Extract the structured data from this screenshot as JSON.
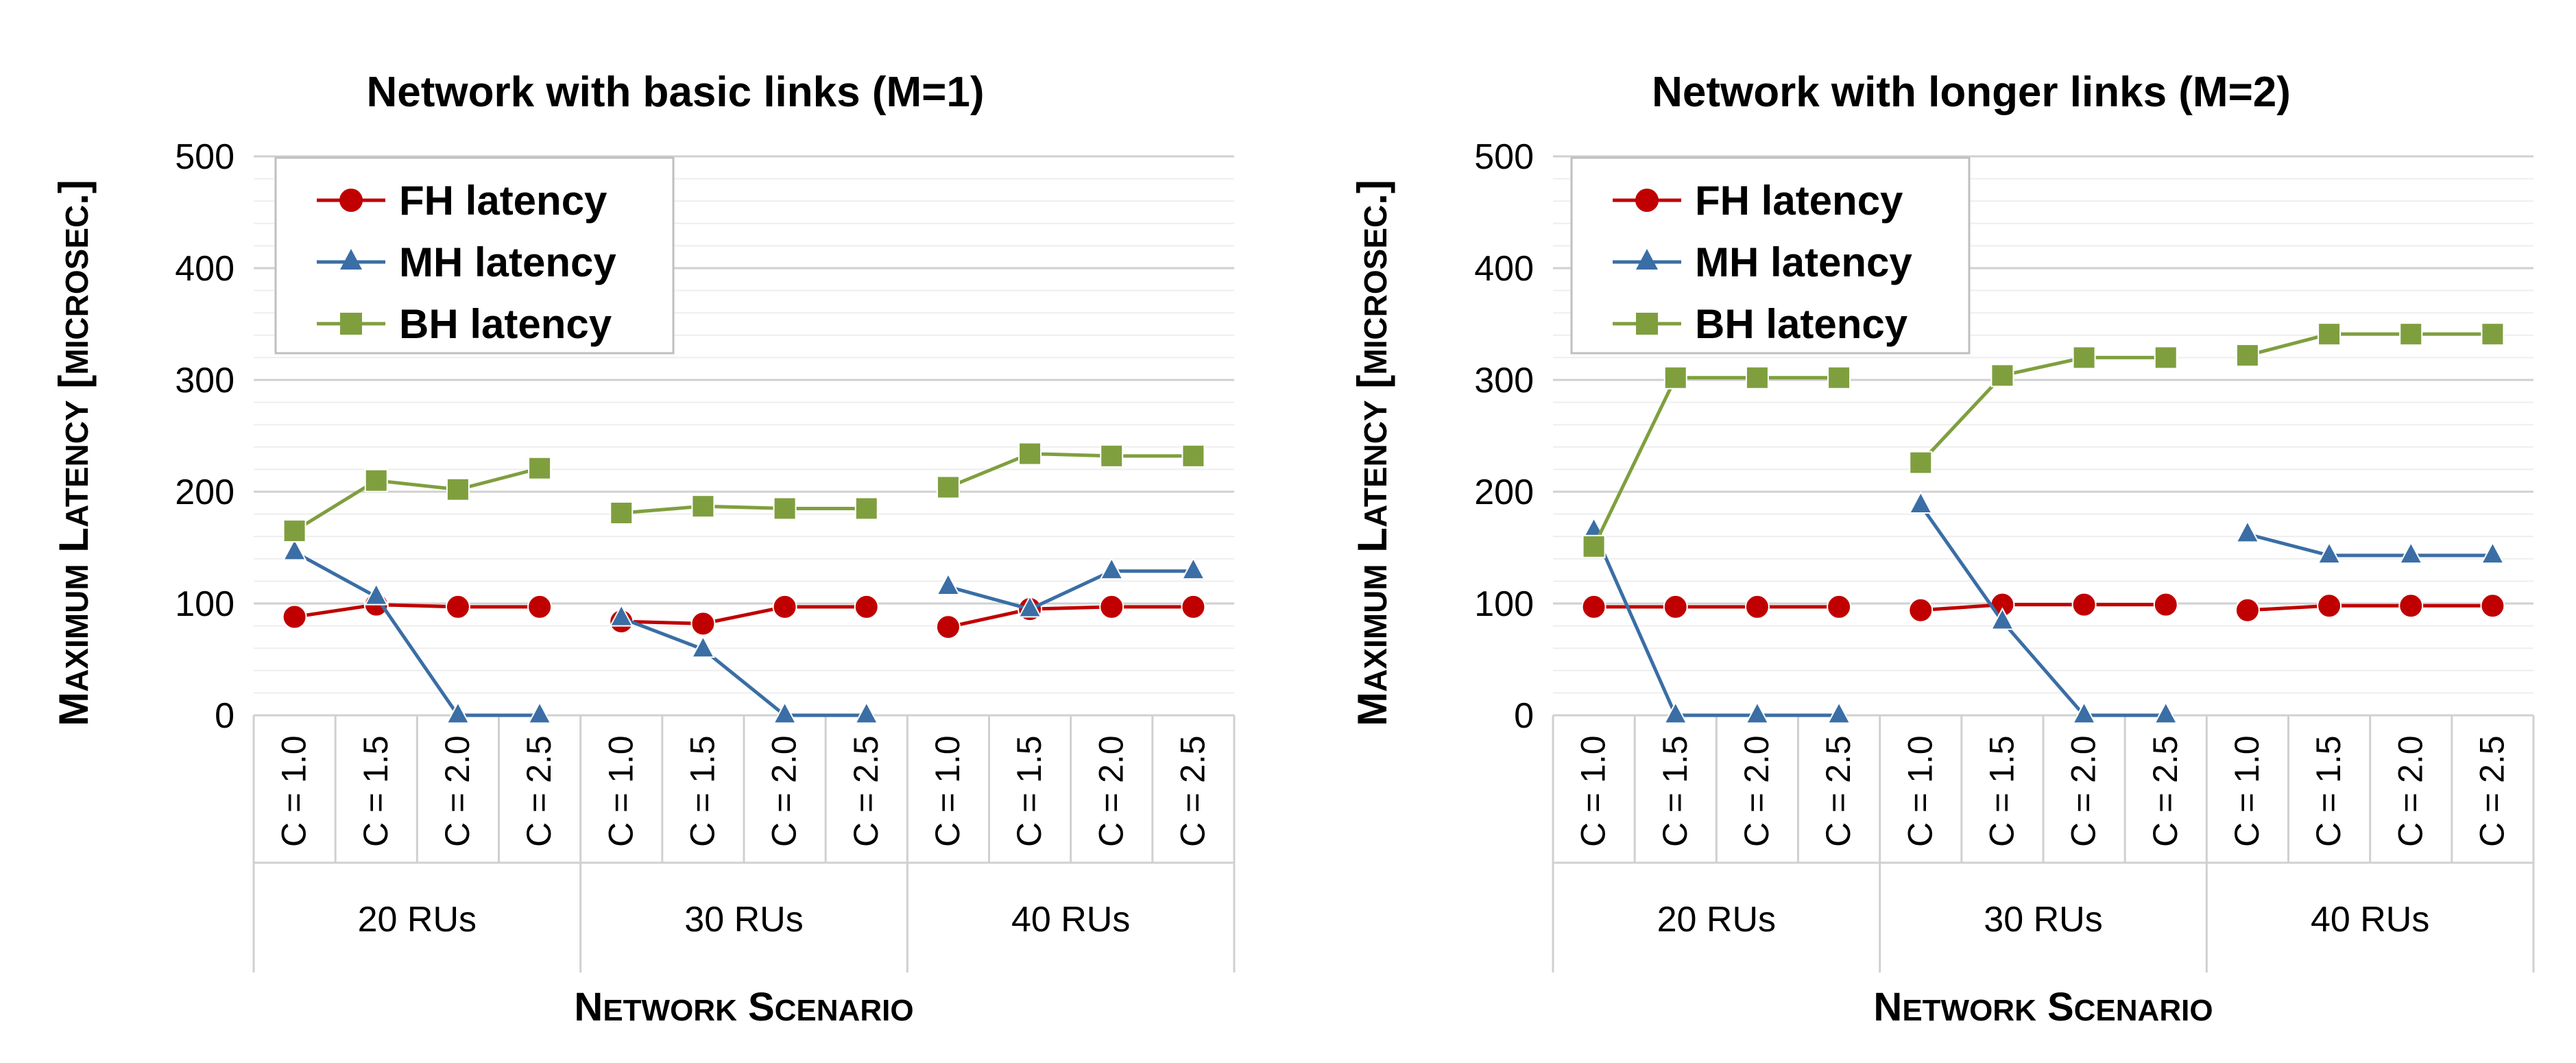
{
  "chart_data": [
    {
      "type": "line",
      "title": "Network with basic links (M=1)",
      "xlabel": "Network Scenario",
      "ylabel": "Maximum Latency [microsec.]",
      "ylim": [
        0,
        500
      ],
      "yticks": [
        0,
        100,
        200,
        300,
        400,
        500
      ],
      "groups": [
        "20 RUs",
        "30 RUs",
        "40 RUs"
      ],
      "categories": [
        "C = 1.0",
        "C = 1.5",
        "C = 2.0",
        "C = 2.5"
      ],
      "legend_position": "top-left",
      "series": [
        {
          "name": "FH latency",
          "color": "#c00000",
          "marker": "circle",
          "values": [
            [
              88,
              99,
              97,
              97
            ],
            [
              84,
              82,
              97,
              97
            ],
            [
              79,
              95,
              97,
              97
            ]
          ]
        },
        {
          "name": "MH latency",
          "color": "#3a6ea5",
          "marker": "triangle",
          "values": [
            [
              146,
              106,
              0,
              0
            ],
            [
              87,
              59,
              0,
              0
            ],
            [
              115,
              95,
              129,
              129
            ]
          ]
        },
        {
          "name": "BH latency",
          "color": "#7f9f3f",
          "marker": "square",
          "values": [
            [
              165,
              210,
              202,
              221
            ],
            [
              181,
              187,
              185,
              185
            ],
            [
              204,
              234,
              232,
              232
            ]
          ]
        }
      ]
    },
    {
      "type": "line",
      "title": "Network with longer links (M=2)",
      "xlabel": "Network Scenario",
      "ylabel": "Maximum Latency [microsec.]",
      "ylim": [
        0,
        500
      ],
      "yticks": [
        0,
        100,
        200,
        300,
        400,
        500
      ],
      "groups": [
        "20 RUs",
        "30 RUs",
        "40 RUs"
      ],
      "categories": [
        "C = 1.0",
        "C = 1.5",
        "C = 2.0",
        "C = 2.5"
      ],
      "legend_position": "top-left",
      "series": [
        {
          "name": "FH latency",
          "color": "#c00000",
          "marker": "circle",
          "values": [
            [
              97,
              97,
              97,
              97
            ],
            [
              94,
              99,
              99,
              99
            ],
            [
              94,
              98,
              98,
              98
            ]
          ]
        },
        {
          "name": "MH latency",
          "color": "#3a6ea5",
          "marker": "triangle",
          "values": [
            [
              165,
              0,
              0,
              0
            ],
            [
              188,
              84,
              0,
              0
            ],
            [
              162,
              143,
              143,
              143
            ]
          ]
        },
        {
          "name": "BH latency",
          "color": "#7f9f3f",
          "marker": "square",
          "values": [
            [
              151,
              302,
              302,
              302
            ],
            [
              226,
              304,
              320,
              320
            ],
            [
              322,
              341,
              341,
              341
            ]
          ]
        }
      ]
    }
  ]
}
